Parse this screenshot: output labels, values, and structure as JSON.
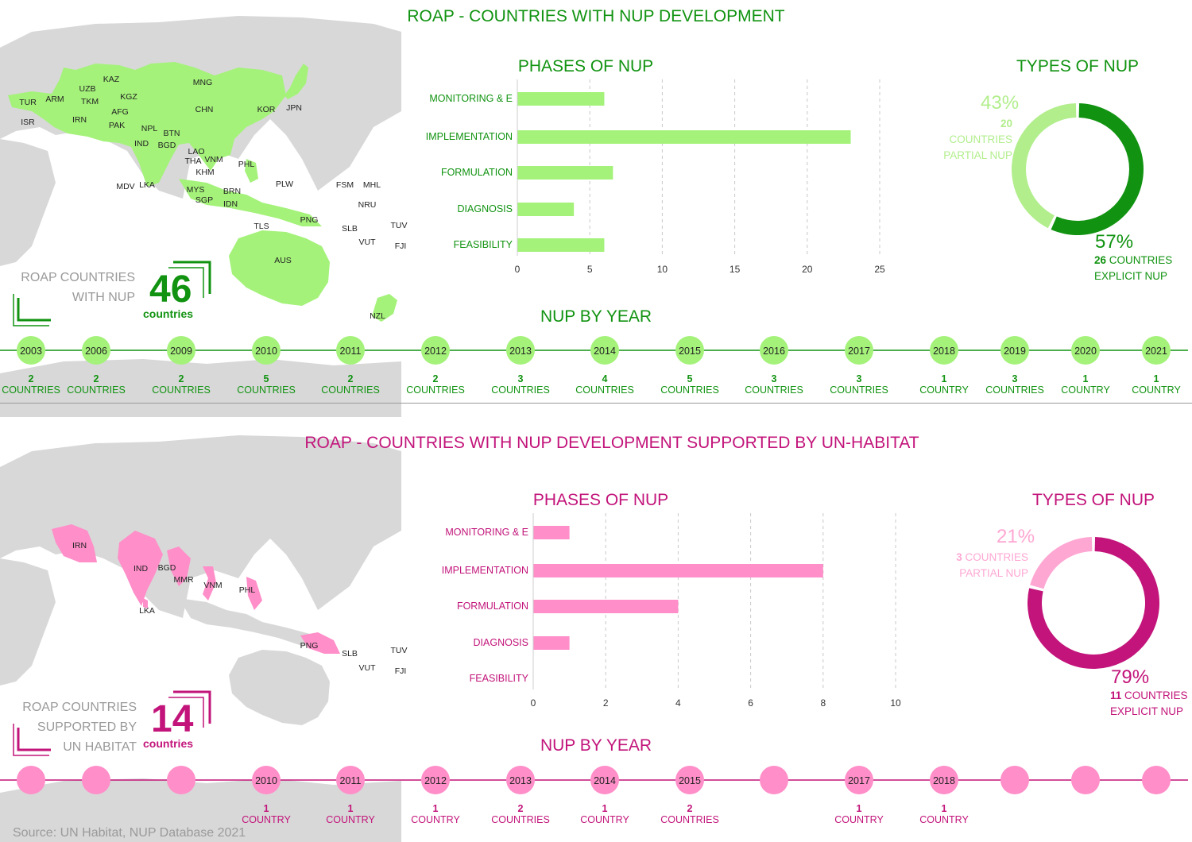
{
  "colors": {
    "green_dark": "#119311",
    "green_light": "#a4f27a",
    "green_donut_light": "#b2ee8c",
    "magenta": "#c2147a",
    "pink": "#ff8ec9",
    "pink_donut_light": "#ffa7d3",
    "map_grey": "#d8d8d8",
    "label_grey": "#9a9a9a"
  },
  "roap": {
    "title": "ROAP - COUNTRIES WITH NUP DEVELOPMENT",
    "count_label_line1": "ROAP COUNTRIES",
    "count_label_line2": "WITH NUP",
    "count": "46",
    "count_unit": "countries",
    "map_labels": [
      "KAZ",
      "MNG",
      "UZB",
      "TKM",
      "KGZ",
      "TUR",
      "ARM",
      "AFG",
      "ISR",
      "IRN",
      "PAK",
      "CHN",
      "KOR",
      "JPN",
      "NPL",
      "BTN",
      "IND",
      "BGD",
      "LAO",
      "THA",
      "VNM",
      "KHM",
      "PHL",
      "MDV",
      "LKA",
      "MYS",
      "SGP",
      "BRN",
      "IDN",
      "PLW",
      "FSM",
      "MHL",
      "NRU",
      "PNG",
      "SLB",
      "TUV",
      "TLS",
      "VUT",
      "FJI",
      "AUS",
      "NZL"
    ],
    "phases_title": "PHASES OF NUP",
    "types_title": "TYPES OF NUP",
    "partial_pct": "43%",
    "partial_count": "20",
    "partial_countries_word": "COUNTRIES",
    "partial_label": "PARTIAL NUP",
    "explicit_pct": "57%",
    "explicit_count": "26",
    "explicit_countries_word": "COUNTRIES",
    "explicit_label": "EXPLICIT NUP",
    "year_title": "NUP BY YEAR",
    "years": [
      {
        "year": "2003",
        "count": "2",
        "unit": "COUNTRIES"
      },
      {
        "year": "2006",
        "count": "2",
        "unit": "COUNTRIES"
      },
      {
        "year": "2009",
        "count": "2",
        "unit": "COUNTRIES"
      },
      {
        "year": "2010",
        "count": "5",
        "unit": "COUNTRIES"
      },
      {
        "year": "2011",
        "count": "2",
        "unit": "COUNTRIES"
      },
      {
        "year": "2012",
        "count": "2",
        "unit": "COUNTRIES"
      },
      {
        "year": "2013",
        "count": "3",
        "unit": "COUNTRIES"
      },
      {
        "year": "2014",
        "count": "4",
        "unit": "COUNTRIES"
      },
      {
        "year": "2015",
        "count": "5",
        "unit": "COUNTRIES"
      },
      {
        "year": "2016",
        "count": "3",
        "unit": "COUNTRIES"
      },
      {
        "year": "2017",
        "count": "3",
        "unit": "COUNTRIES"
      },
      {
        "year": "2018",
        "count": "1",
        "unit": "COUNTRY"
      },
      {
        "year": "2019",
        "count": "3",
        "unit": "COUNTRIES"
      },
      {
        "year": "2020",
        "count": "1",
        "unit": "COUNTRY"
      },
      {
        "year": "2021",
        "count": "1",
        "unit": "COUNTRY"
      }
    ]
  },
  "unh": {
    "title": "ROAP - COUNTRIES WITH NUP DEVELOPMENT SUPPORTED BY UN-HABITAT",
    "count_label_line1": "ROAP COUNTRIES",
    "count_label_line2": "SUPPORTED BY",
    "count_label_line3": "UN HABITAT",
    "count": "14",
    "count_unit": "countries",
    "map_labels": [
      "IRN",
      "IND",
      "BGD",
      "MMR",
      "VNM",
      "PHL",
      "LKA",
      "PNG",
      "SLB",
      "TUV",
      "VUT",
      "FJI"
    ],
    "phases_title": "PHASES OF NUP",
    "types_title": "TYPES OF NUP",
    "partial_pct": "21%",
    "partial_count": "3",
    "partial_countries_word": "COUNTRIES",
    "partial_label": "PARTIAL NUP",
    "explicit_pct": "79%",
    "explicit_count": "11",
    "explicit_countries_word": "COUNTRIES",
    "explicit_label": "EXPLICIT NUP",
    "year_title": "NUP BY YEAR",
    "years": [
      {
        "year": "",
        "count": "",
        "unit": ""
      },
      {
        "year": "",
        "count": "",
        "unit": ""
      },
      {
        "year": "",
        "count": "",
        "unit": ""
      },
      {
        "year": "2010",
        "count": "1",
        "unit": "COUNTRY"
      },
      {
        "year": "2011",
        "count": "1",
        "unit": "COUNTRY"
      },
      {
        "year": "2012",
        "count": "1",
        "unit": "COUNTRY"
      },
      {
        "year": "2013",
        "count": "2",
        "unit": "COUNTRIES"
      },
      {
        "year": "2014",
        "count": "1",
        "unit": "COUNTRY"
      },
      {
        "year": "2015",
        "count": "2",
        "unit": "COUNTRIES"
      },
      {
        "year": "",
        "count": "",
        "unit": ""
      },
      {
        "year": "2017",
        "count": "1",
        "unit": "COUNTRY"
      },
      {
        "year": "2018",
        "count": "1",
        "unit": "COUNTRY"
      },
      {
        "year": "",
        "count": "",
        "unit": ""
      },
      {
        "year": "",
        "count": "",
        "unit": ""
      },
      {
        "year": "",
        "count": "",
        "unit": ""
      }
    ]
  },
  "source": "Source: UN Habitat, NUP Database 2021",
  "chart_data": [
    {
      "type": "bar",
      "orientation": "horizontal",
      "title": "PHASES OF NUP",
      "categories": [
        "MONITORING & E",
        "IMPLEMENTATION",
        "FORMULATION",
        "DIAGNOSIS",
        "FEASIBILITY"
      ],
      "values": [
        6,
        23,
        6.6,
        3.9,
        6
      ],
      "xlim": [
        0,
        25
      ],
      "xticks": [
        0,
        5,
        10,
        15,
        20,
        25
      ],
      "grid": "vertical dashed"
    },
    {
      "type": "pie",
      "title": "TYPES OF NUP",
      "labels": [
        "PARTIAL NUP",
        "EXPLICIT NUP"
      ],
      "values": [
        43,
        57
      ],
      "counts": [
        20,
        26
      ]
    },
    {
      "type": "bar",
      "orientation": "horizontal",
      "title": "PHASES OF NUP",
      "categories": [
        "MONITORING & E",
        "IMPLEMENTATION",
        "FORMULATION",
        "DIAGNOSIS",
        "FEASIBILITY"
      ],
      "values": [
        1,
        8,
        4,
        1,
        0
      ],
      "xlim": [
        0,
        10
      ],
      "xticks": [
        0,
        2,
        4,
        6,
        8,
        10
      ],
      "grid": "vertical dashed"
    },
    {
      "type": "pie",
      "title": "TYPES OF NUP",
      "labels": [
        "PARTIAL NUP",
        "EXPLICIT NUP"
      ],
      "values": [
        21,
        79
      ],
      "counts": [
        3,
        11
      ]
    }
  ]
}
